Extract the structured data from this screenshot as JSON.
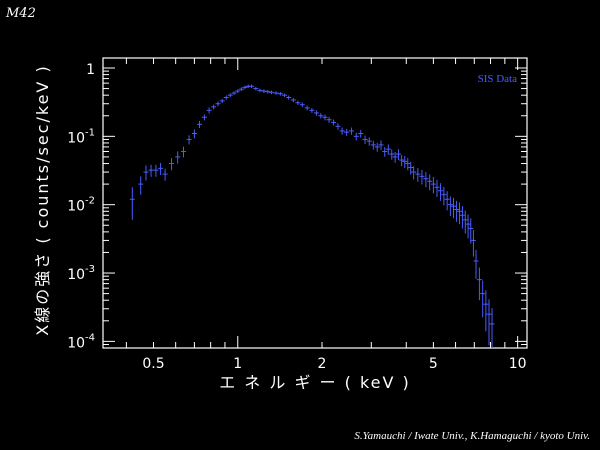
{
  "page": {
    "corner_label": "M42",
    "credit": "S.Yamauchi / Iwate Univ.,   K.Hamaguchi / kyoto Univ."
  },
  "colors": {
    "background": "#000000",
    "axes": "#ffffff",
    "series": "#4a5cff"
  },
  "chart_data": {
    "type": "scatter",
    "title": "",
    "xlabel": "エ ネ ル ギ ー ( keV )",
    "ylabel": "X線の強さ ( counts/sec/keV )",
    "xscale": "log",
    "yscale": "log",
    "xlim": [
      0.33,
      10.8
    ],
    "ylim": [
      8e-05,
      1.4
    ],
    "x_tick_labels": [
      {
        "value": 0.5,
        "label": "0.5"
      },
      {
        "value": 1,
        "label": "1"
      },
      {
        "value": 2,
        "label": "2"
      },
      {
        "value": 5,
        "label": "5"
      },
      {
        "value": 10,
        "label": "10"
      }
    ],
    "y_tick_labels": [
      {
        "value": 1,
        "base": "1",
        "exp": ""
      },
      {
        "value": 0.1,
        "base": "10",
        "exp": "-1"
      },
      {
        "value": 0.01,
        "base": "10",
        "exp": "-2"
      },
      {
        "value": 0.001,
        "base": "10",
        "exp": "-3"
      },
      {
        "value": 0.0001,
        "base": "10",
        "exp": "-4"
      }
    ],
    "legend": {
      "position": "top-right"
    },
    "series": [
      {
        "name": "SIS Data",
        "points": [
          [
            0.42,
            0.012,
            0.5
          ],
          [
            0.45,
            0.02,
            0.3
          ],
          [
            0.47,
            0.03,
            0.25
          ],
          [
            0.49,
            0.032,
            0.2
          ],
          [
            0.51,
            0.032,
            0.2
          ],
          [
            0.53,
            0.034,
            0.2
          ],
          [
            0.55,
            0.028,
            0.2
          ],
          [
            0.58,
            0.04,
            0.2
          ],
          [
            0.61,
            0.05,
            0.2
          ],
          [
            0.64,
            0.06,
            0.18
          ],
          [
            0.67,
            0.09,
            0.15
          ],
          [
            0.7,
            0.11,
            0.15
          ],
          [
            0.73,
            0.15,
            0.12
          ],
          [
            0.76,
            0.19,
            0.1
          ],
          [
            0.79,
            0.24,
            0.1
          ],
          [
            0.82,
            0.27,
            0.08
          ],
          [
            0.85,
            0.3,
            0.08
          ],
          [
            0.88,
            0.33,
            0.07
          ],
          [
            0.91,
            0.37,
            0.07
          ],
          [
            0.94,
            0.4,
            0.07
          ],
          [
            0.97,
            0.43,
            0.06
          ],
          [
            1.0,
            0.46,
            0.06
          ],
          [
            1.03,
            0.49,
            0.06
          ],
          [
            1.06,
            0.52,
            0.06
          ],
          [
            1.09,
            0.54,
            0.06
          ],
          [
            1.12,
            0.54,
            0.06
          ],
          [
            1.16,
            0.5,
            0.06
          ],
          [
            1.2,
            0.47,
            0.06
          ],
          [
            1.24,
            0.46,
            0.06
          ],
          [
            1.28,
            0.45,
            0.06
          ],
          [
            1.32,
            0.44,
            0.06
          ],
          [
            1.37,
            0.43,
            0.06
          ],
          [
            1.42,
            0.42,
            0.06
          ],
          [
            1.47,
            0.4,
            0.06
          ],
          [
            1.52,
            0.37,
            0.07
          ],
          [
            1.58,
            0.34,
            0.07
          ],
          [
            1.64,
            0.31,
            0.07
          ],
          [
            1.7,
            0.29,
            0.08
          ],
          [
            1.77,
            0.26,
            0.08
          ],
          [
            1.84,
            0.24,
            0.08
          ],
          [
            1.91,
            0.22,
            0.09
          ],
          [
            1.98,
            0.2,
            0.09
          ],
          [
            2.05,
            0.19,
            0.1
          ],
          [
            2.12,
            0.175,
            0.1
          ],
          [
            2.2,
            0.16,
            0.1
          ],
          [
            2.28,
            0.14,
            0.11
          ],
          [
            2.36,
            0.12,
            0.12
          ],
          [
            2.45,
            0.115,
            0.12
          ],
          [
            2.55,
            0.12,
            0.12
          ],
          [
            2.65,
            0.1,
            0.13
          ],
          [
            2.75,
            0.11,
            0.13
          ],
          [
            2.85,
            0.09,
            0.14
          ],
          [
            2.95,
            0.085,
            0.14
          ],
          [
            3.05,
            0.075,
            0.15
          ],
          [
            3.15,
            0.07,
            0.15
          ],
          [
            3.25,
            0.075,
            0.16
          ],
          [
            3.35,
            0.06,
            0.16
          ],
          [
            3.45,
            0.065,
            0.17
          ],
          [
            3.55,
            0.055,
            0.17
          ],
          [
            3.65,
            0.05,
            0.18
          ],
          [
            3.75,
            0.055,
            0.18
          ],
          [
            3.85,
            0.045,
            0.19
          ],
          [
            3.95,
            0.043,
            0.2
          ],
          [
            4.05,
            0.04,
            0.2
          ],
          [
            4.15,
            0.035,
            0.21
          ],
          [
            4.25,
            0.03,
            0.22
          ],
          [
            4.4,
            0.028,
            0.23
          ],
          [
            4.55,
            0.026,
            0.24
          ],
          [
            4.7,
            0.024,
            0.25
          ],
          [
            4.85,
            0.022,
            0.26
          ],
          [
            5.0,
            0.02,
            0.27
          ],
          [
            5.15,
            0.018,
            0.28
          ],
          [
            5.3,
            0.016,
            0.29
          ],
          [
            5.45,
            0.014,
            0.3
          ],
          [
            5.6,
            0.012,
            0.31
          ],
          [
            5.75,
            0.01,
            0.32
          ],
          [
            5.9,
            0.0095,
            0.33
          ],
          [
            6.05,
            0.0085,
            0.34
          ],
          [
            6.2,
            0.008,
            0.35
          ],
          [
            6.35,
            0.007,
            0.36
          ],
          [
            6.5,
            0.006,
            0.37
          ],
          [
            6.65,
            0.0052,
            0.38
          ],
          [
            6.8,
            0.0045,
            0.4
          ],
          [
            6.95,
            0.003,
            0.42
          ],
          [
            7.1,
            0.0015,
            0.45
          ],
          [
            7.3,
            0.0008,
            0.5
          ],
          [
            7.5,
            0.0005,
            0.55
          ],
          [
            7.7,
            0.00035,
            0.6
          ],
          [
            7.9,
            0.00025,
            0.65
          ],
          [
            8.1,
            0.00018,
            0.7
          ]
        ]
      }
    ]
  }
}
